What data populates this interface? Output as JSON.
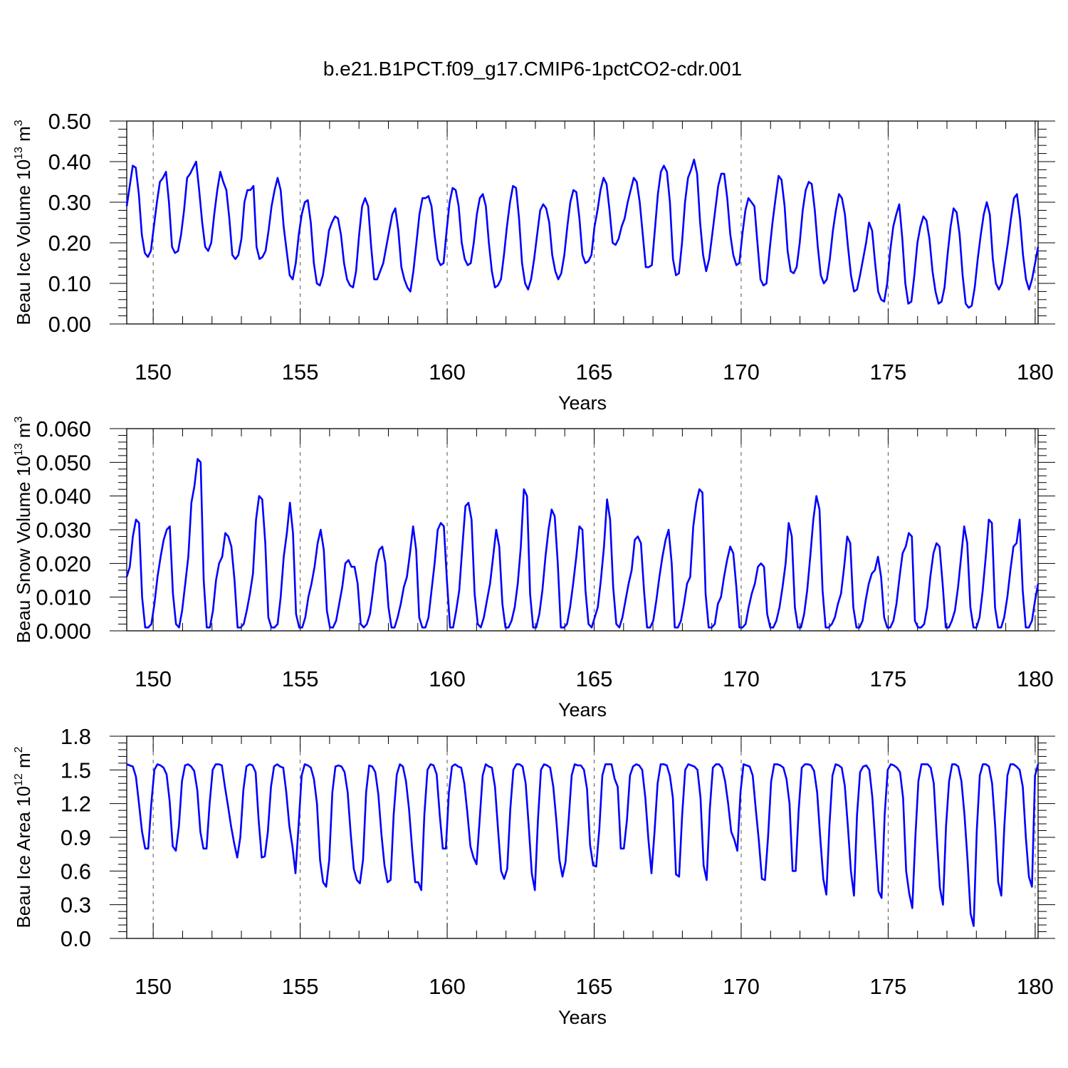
{
  "title": "b.e21.B1PCT.f09_g17.CMIP6-1pctCO2-cdr.001",
  "line_color": "#0000ff",
  "chart_data": [
    {
      "type": "line",
      "ylabel": "Beau Ice Volume 10",
      "ylabel_sup": "13",
      "ylabel_unit": "m",
      "ylabel_unit_sup": "3",
      "xlabel": "Years",
      "xlim": [
        149.1,
        180.1
      ],
      "ylim": [
        0,
        0.5
      ],
      "x_ticks": [
        "150",
        "155",
        "160",
        "165",
        "170",
        "175",
        "180"
      ],
      "y_ticks": [
        "0.00",
        "0.10",
        "0.20",
        "0.30",
        "0.40",
        "0.50"
      ],
      "grid": "dashed vertical lines at labeled years",
      "series": [
        {
          "values": [
            0.29,
            0.34,
            0.39,
            0.385,
            0.32,
            0.22,
            0.175,
            0.165,
            0.18,
            0.24,
            0.3,
            0.35,
            0.36,
            0.375,
            0.3,
            0.19,
            0.175,
            0.18,
            0.22,
            0.28,
            0.36,
            0.37,
            0.385,
            0.4,
            0.33,
            0.25,
            0.19,
            0.18,
            0.2,
            0.27,
            0.33,
            0.375,
            0.35,
            0.33,
            0.26,
            0.17,
            0.16,
            0.17,
            0.21,
            0.3,
            0.33,
            0.33,
            0.34,
            0.19,
            0.16,
            0.165,
            0.18,
            0.23,
            0.29,
            0.33,
            0.36,
            0.33,
            0.24,
            0.18,
            0.12,
            0.11,
            0.15,
            0.22,
            0.27,
            0.3,
            0.305,
            0.25,
            0.15,
            0.1,
            0.095,
            0.12,
            0.17,
            0.23,
            0.25,
            0.265,
            0.26,
            0.22,
            0.15,
            0.11,
            0.095,
            0.09,
            0.13,
            0.22,
            0.29,
            0.31,
            0.29,
            0.19,
            0.11,
            0.11,
            0.13,
            0.15,
            0.19,
            0.23,
            0.27,
            0.285,
            0.23,
            0.14,
            0.11,
            0.09,
            0.08,
            0.13,
            0.2,
            0.27,
            0.31,
            0.31,
            0.315,
            0.29,
            0.22,
            0.16,
            0.145,
            0.15,
            0.23,
            0.3,
            0.335,
            0.33,
            0.29,
            0.2,
            0.16,
            0.145,
            0.15,
            0.2,
            0.27,
            0.31,
            0.32,
            0.29,
            0.2,
            0.13,
            0.09,
            0.095,
            0.11,
            0.17,
            0.24,
            0.3,
            0.34,
            0.335,
            0.26,
            0.15,
            0.1,
            0.085,
            0.11,
            0.16,
            0.22,
            0.28,
            0.295,
            0.285,
            0.25,
            0.17,
            0.13,
            0.11,
            0.125,
            0.17,
            0.24,
            0.3,
            0.33,
            0.325,
            0.26,
            0.17,
            0.15,
            0.155,
            0.17,
            0.24,
            0.28,
            0.33,
            0.36,
            0.345,
            0.28,
            0.2,
            0.195,
            0.21,
            0.24,
            0.26,
            0.3,
            0.33,
            0.36,
            0.35,
            0.3,
            0.22,
            0.14,
            0.14,
            0.145,
            0.23,
            0.32,
            0.375,
            0.39,
            0.375,
            0.3,
            0.16,
            0.12,
            0.125,
            0.2,
            0.3,
            0.36,
            0.38,
            0.405,
            0.37,
            0.25,
            0.17,
            0.13,
            0.16,
            0.22,
            0.28,
            0.34,
            0.37,
            0.37,
            0.31,
            0.22,
            0.17,
            0.145,
            0.15,
            0.22,
            0.28,
            0.31,
            0.3,
            0.29,
            0.2,
            0.11,
            0.095,
            0.1,
            0.18,
            0.25,
            0.31,
            0.365,
            0.355,
            0.29,
            0.18,
            0.13,
            0.125,
            0.14,
            0.2,
            0.28,
            0.33,
            0.35,
            0.345,
            0.28,
            0.19,
            0.12,
            0.1,
            0.11,
            0.16,
            0.23,
            0.28,
            0.32,
            0.31,
            0.27,
            0.19,
            0.12,
            0.08,
            0.085,
            0.12,
            0.16,
            0.2,
            0.25,
            0.23,
            0.15,
            0.08,
            0.06,
            0.055,
            0.1,
            0.18,
            0.24,
            0.27,
            0.295,
            0.21,
            0.1,
            0.05,
            0.055,
            0.12,
            0.2,
            0.24,
            0.265,
            0.255,
            0.21,
            0.13,
            0.08,
            0.05,
            0.055,
            0.09,
            0.17,
            0.24,
            0.285,
            0.275,
            0.22,
            0.12,
            0.05,
            0.04,
            0.045,
            0.09,
            0.16,
            0.22,
            0.27,
            0.3,
            0.27,
            0.16,
            0.1,
            0.085,
            0.1,
            0.15,
            0.2,
            0.26,
            0.31,
            0.32,
            0.26,
            0.17,
            0.11,
            0.085,
            0.11,
            0.15,
            0.19
          ]
        }
      ]
    },
    {
      "type": "line",
      "ylabel": "Beau Snow Volume 10",
      "ylabel_sup": "13",
      "ylabel_unit": "m",
      "ylabel_unit_sup": "3",
      "xlabel": "Years",
      "xlim": [
        149.1,
        180.1
      ],
      "ylim": [
        0,
        0.06
      ],
      "x_ticks": [
        "150",
        "155",
        "160",
        "165",
        "170",
        "175",
        "180"
      ],
      "y_ticks": [
        "0.000",
        "0.010",
        "0.020",
        "0.030",
        "0.040",
        "0.050",
        "0.060"
      ],
      "grid": "dashed vertical lines at labeled years",
      "series": [
        {
          "values": [
            0.016,
            0.019,
            0.028,
            0.033,
            0.032,
            0.01,
            0.001,
            0.001,
            0.002,
            0.008,
            0.016,
            0.022,
            0.027,
            0.03,
            0.031,
            0.011,
            0.002,
            0.001,
            0.006,
            0.014,
            0.022,
            0.038,
            0.043,
            0.051,
            0.05,
            0.015,
            0.001,
            0.001,
            0.006,
            0.015,
            0.02,
            0.022,
            0.029,
            0.028,
            0.025,
            0.015,
            0.001,
            0.001,
            0.002,
            0.006,
            0.011,
            0.017,
            0.033,
            0.04,
            0.039,
            0.026,
            0.004,
            0.001,
            0.001,
            0.002,
            0.01,
            0.022,
            0.029,
            0.038,
            0.029,
            0.005,
            0.001,
            0.001,
            0.004,
            0.01,
            0.014,
            0.019,
            0.026,
            0.03,
            0.024,
            0.006,
            0.001,
            0.001,
            0.003,
            0.008,
            0.013,
            0.02,
            0.021,
            0.019,
            0.019,
            0.014,
            0.002,
            0.001,
            0.002,
            0.005,
            0.012,
            0.02,
            0.024,
            0.025,
            0.02,
            0.007,
            0.001,
            0.001,
            0.004,
            0.008,
            0.013,
            0.016,
            0.023,
            0.031,
            0.024,
            0.004,
            0.001,
            0.001,
            0.004,
            0.012,
            0.02,
            0.03,
            0.032,
            0.031,
            0.015,
            0.001,
            0.001,
            0.006,
            0.012,
            0.025,
            0.037,
            0.038,
            0.033,
            0.011,
            0.002,
            0.001,
            0.004,
            0.009,
            0.014,
            0.022,
            0.03,
            0.025,
            0.008,
            0.001,
            0.001,
            0.003,
            0.007,
            0.014,
            0.025,
            0.042,
            0.04,
            0.011,
            0.001,
            0.001,
            0.005,
            0.012,
            0.022,
            0.03,
            0.036,
            0.034,
            0.02,
            0.001,
            0.001,
            0.002,
            0.007,
            0.014,
            0.022,
            0.031,
            0.03,
            0.012,
            0.002,
            0.001,
            0.004,
            0.007,
            0.015,
            0.025,
            0.039,
            0.033,
            0.013,
            0.002,
            0.001,
            0.004,
            0.009,
            0.014,
            0.018,
            0.027,
            0.028,
            0.026,
            0.012,
            0.001,
            0.001,
            0.003,
            0.009,
            0.016,
            0.022,
            0.027,
            0.03,
            0.02,
            0.001,
            0.001,
            0.003,
            0.008,
            0.014,
            0.016,
            0.031,
            0.038,
            0.042,
            0.041,
            0.011,
            0.001,
            0.001,
            0.002,
            0.008,
            0.01,
            0.016,
            0.021,
            0.025,
            0.023,
            0.013,
            0.001,
            0.001,
            0.002,
            0.007,
            0.011,
            0.014,
            0.019,
            0.02,
            0.019,
            0.005,
            0.001,
            0.001,
            0.003,
            0.007,
            0.013,
            0.02,
            0.032,
            0.028,
            0.007,
            0.001,
            0.001,
            0.005,
            0.012,
            0.022,
            0.033,
            0.04,
            0.036,
            0.012,
            0.001,
            0.001,
            0.002,
            0.004,
            0.008,
            0.011,
            0.019,
            0.028,
            0.026,
            0.007,
            0.001,
            0.001,
            0.003,
            0.009,
            0.014,
            0.017,
            0.018,
            0.022,
            0.016,
            0.004,
            0.001,
            0.001,
            0.003,
            0.008,
            0.016,
            0.023,
            0.025,
            0.029,
            0.028,
            0.003,
            0.001,
            0.001,
            0.002,
            0.007,
            0.016,
            0.023,
            0.026,
            0.025,
            0.014,
            0.001,
            0.001,
            0.003,
            0.006,
            0.013,
            0.022,
            0.031,
            0.026,
            0.007,
            0.001,
            0.001,
            0.004,
            0.012,
            0.022,
            0.033,
            0.032,
            0.007,
            0.001,
            0.001,
            0.004,
            0.01,
            0.018,
            0.025,
            0.026,
            0.033,
            0.012,
            0.001,
            0.001,
            0.003,
            0.009,
            0.014
          ]
        }
      ]
    },
    {
      "type": "line",
      "ylabel": "Beau Ice Area 10",
      "ylabel_sup": "12",
      "ylabel_unit": "m",
      "ylabel_unit_sup": "2",
      "xlabel": "Years",
      "xlim": [
        149.1,
        180.1
      ],
      "ylim": [
        0,
        1.8
      ],
      "x_ticks": [
        "150",
        "155",
        "160",
        "165",
        "170",
        "175",
        "180"
      ],
      "y_ticks": [
        "0.0",
        "0.3",
        "0.6",
        "0.9",
        "1.2",
        "1.5",
        "1.8"
      ],
      "grid": "dashed vertical lines at labeled years",
      "series": [
        {
          "values": [
            1.55,
            1.54,
            1.53,
            1.44,
            1.2,
            0.95,
            0.8,
            0.8,
            1.2,
            1.5,
            1.55,
            1.54,
            1.52,
            1.46,
            1.22,
            0.82,
            0.78,
            1.0,
            1.4,
            1.54,
            1.55,
            1.53,
            1.49,
            1.32,
            0.95,
            0.8,
            0.8,
            1.2,
            1.5,
            1.55,
            1.55,
            1.54,
            1.35,
            1.18,
            1.0,
            0.85,
            0.72,
            0.9,
            1.32,
            1.53,
            1.55,
            1.54,
            1.48,
            1.05,
            0.72,
            0.73,
            0.95,
            1.35,
            1.53,
            1.55,
            1.53,
            1.52,
            1.3,
            1.0,
            0.82,
            0.58,
            1.0,
            1.45,
            1.55,
            1.54,
            1.52,
            1.42,
            1.2,
            0.7,
            0.5,
            0.46,
            0.7,
            1.3,
            1.53,
            1.54,
            1.53,
            1.48,
            1.3,
            0.93,
            0.62,
            0.52,
            0.49,
            0.7,
            1.3,
            1.54,
            1.53,
            1.48,
            1.28,
            0.93,
            0.65,
            0.5,
            0.52,
            1.1,
            1.46,
            1.55,
            1.53,
            1.4,
            1.15,
            0.8,
            0.5,
            0.5,
            0.43,
            1.1,
            1.5,
            1.55,
            1.54,
            1.46,
            1.1,
            0.8,
            0.8,
            1.3,
            1.53,
            1.55,
            1.53,
            1.52,
            1.38,
            1.12,
            0.82,
            0.72,
            0.66,
            1.05,
            1.45,
            1.55,
            1.53,
            1.52,
            1.35,
            0.97,
            0.6,
            0.53,
            0.62,
            1.15,
            1.5,
            1.55,
            1.55,
            1.53,
            1.38,
            1.0,
            0.58,
            0.43,
            1.05,
            1.5,
            1.55,
            1.54,
            1.52,
            1.35,
            1.05,
            0.7,
            0.55,
            0.68,
            1.05,
            1.45,
            1.55,
            1.54,
            1.54,
            1.5,
            1.33,
            0.83,
            0.65,
            0.64,
            0.97,
            1.45,
            1.55,
            1.55,
            1.55,
            1.42,
            1.35,
            0.8,
            0.8,
            1.05,
            1.45,
            1.53,
            1.55,
            1.54,
            1.5,
            1.25,
            0.88,
            0.58,
            0.95,
            1.38,
            1.55,
            1.55,
            1.54,
            1.45,
            1.25,
            0.57,
            0.55,
            1.1,
            1.5,
            1.55,
            1.54,
            1.53,
            1.5,
            1.25,
            0.65,
            0.52,
            1.15,
            1.52,
            1.55,
            1.55,
            1.52,
            1.4,
            1.2,
            0.95,
            0.88,
            0.78,
            1.3,
            1.55,
            1.54,
            1.53,
            1.45,
            1.15,
            0.87,
            0.53,
            0.52,
            0.9,
            1.4,
            1.55,
            1.55,
            1.54,
            1.52,
            1.42,
            1.2,
            0.6,
            0.6,
            1.15,
            1.52,
            1.55,
            1.55,
            1.54,
            1.49,
            1.3,
            0.9,
            0.53,
            0.39,
            1.0,
            1.45,
            1.55,
            1.54,
            1.52,
            1.36,
            1.0,
            0.6,
            0.38,
            1.1,
            1.48,
            1.53,
            1.54,
            1.5,
            1.25,
            0.83,
            0.42,
            0.36,
            1.1,
            1.5,
            1.55,
            1.54,
            1.52,
            1.48,
            1.25,
            0.6,
            0.4,
            0.27,
            0.9,
            1.4,
            1.55,
            1.55,
            1.55,
            1.52,
            1.38,
            0.9,
            0.45,
            0.3,
            1.0,
            1.4,
            1.55,
            1.55,
            1.53,
            1.4,
            1.1,
            0.7,
            0.22,
            0.11,
            0.95,
            1.45,
            1.55,
            1.55,
            1.53,
            1.38,
            1.0,
            0.5,
            0.38,
            1.0,
            1.45,
            1.55,
            1.55,
            1.53,
            1.5,
            1.35,
            0.9,
            0.55,
            0.46,
            1.45,
            1.55
          ]
        }
      ]
    }
  ]
}
